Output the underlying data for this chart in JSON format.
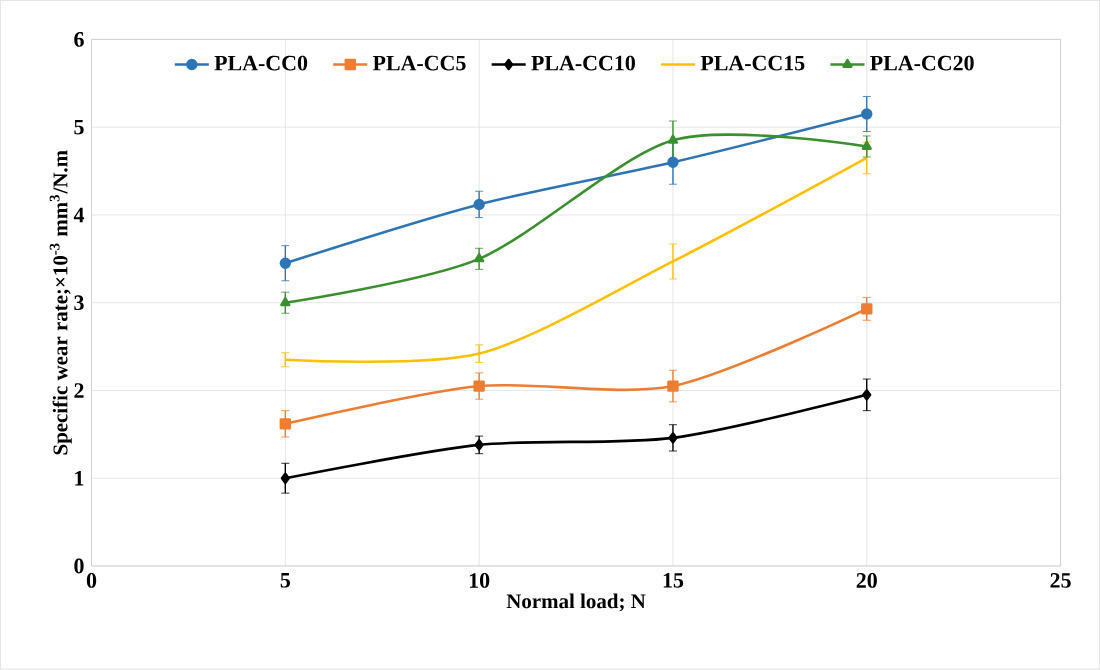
{
  "chart_data": {
    "type": "line",
    "xlabel": "Normal load; N",
    "ylabel": "Specific wear rate;×10$^{-3}$ mm$^{3}$/N.m",
    "x": [
      5,
      10,
      15,
      20
    ],
    "series": [
      {
        "name": "PLA-CC0",
        "color": "#2e75b6",
        "marker": "circle",
        "values": [
          3.45,
          4.12,
          4.6,
          5.15
        ],
        "errors": [
          0.2,
          0.15,
          0.25,
          0.2
        ]
      },
      {
        "name": "PLA-CC5",
        "color": "#ed7d31",
        "marker": "square",
        "values": [
          1.62,
          2.05,
          2.05,
          2.93
        ],
        "errors": [
          0.15,
          0.15,
          0.18,
          0.13
        ]
      },
      {
        "name": "PLA-CC10",
        "color": "#000000",
        "marker": "diamond",
        "values": [
          1.0,
          1.38,
          1.46,
          1.95
        ],
        "errors": [
          0.17,
          0.1,
          0.15,
          0.18
        ]
      },
      {
        "name": "PLA-CC15",
        "color": "#ffc000",
        "marker": "none",
        "values": [
          2.35,
          2.42,
          3.47,
          4.65
        ],
        "errors": [
          0.08,
          0.1,
          0.2,
          0.18
        ]
      },
      {
        "name": "PLA-CC20",
        "color": "#3a8f2e",
        "marker": "triangle",
        "values": [
          3.0,
          3.5,
          4.85,
          4.78
        ],
        "errors": [
          0.12,
          0.12,
          0.22,
          0.12
        ]
      }
    ],
    "xlim": [
      0,
      25
    ],
    "xticks": [
      0,
      5,
      10,
      15,
      20,
      25
    ],
    "ylim": [
      0,
      6
    ],
    "yticks": [
      0,
      1,
      2,
      3,
      4,
      5,
      6
    ],
    "grid": true,
    "legend": "top",
    "line_style": "solid"
  }
}
